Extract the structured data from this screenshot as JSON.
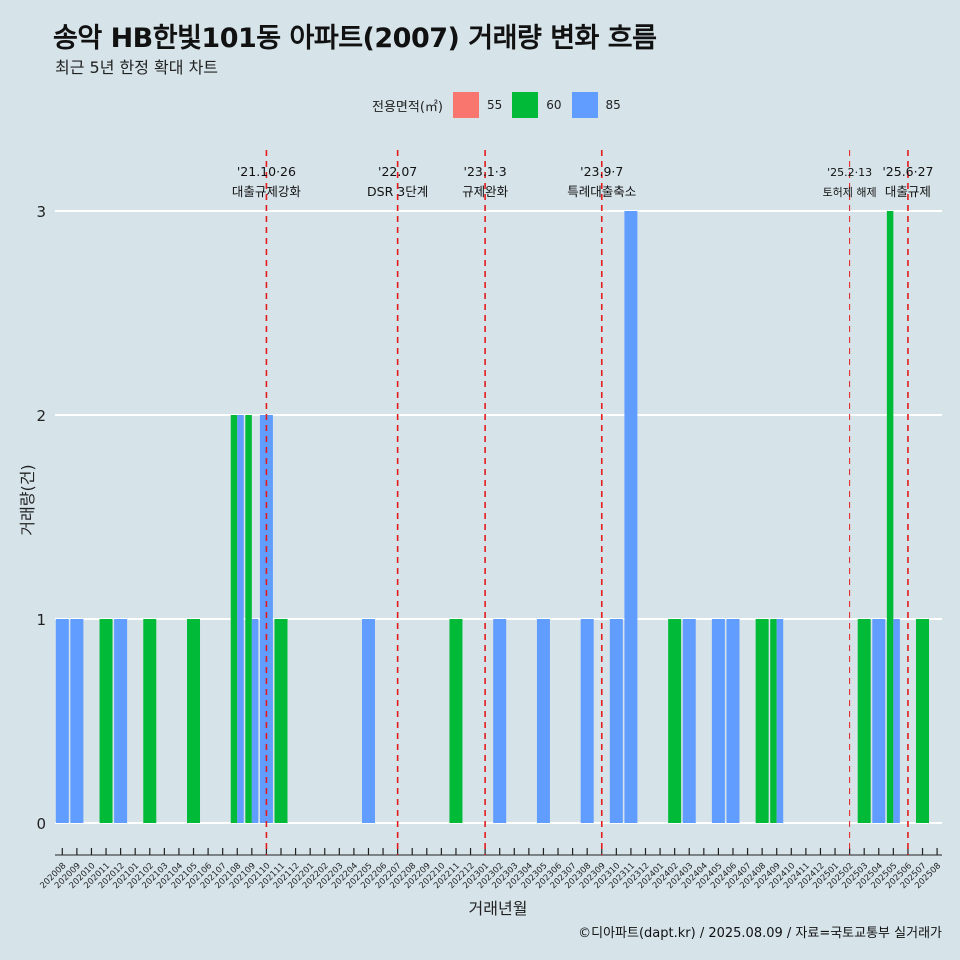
{
  "title": "송악 HB한빛101동 아파트(2007) 거래량 변화 흐름",
  "subtitle": "최근 5년 한정 확대 차트",
  "caption": "©디아파트(dapt.kr) / 2025.08.09 / 자료=국토교통부 실거래가",
  "legend": {
    "title": "전용면적(㎡)",
    "items": [
      {
        "label": "55",
        "color": "#f8766d"
      },
      {
        "label": "60",
        "color": "#00ba38"
      },
      {
        "label": "85",
        "color": "#619cff"
      }
    ]
  },
  "chart_data": {
    "type": "bar",
    "stacking": "dodge",
    "xlabel": "거래년월",
    "ylabel": "거래량(건)",
    "ylim": [
      0,
      3
    ],
    "yticks": [
      0,
      1,
      2,
      3
    ],
    "categories": [
      "202008",
      "202009",
      "202010",
      "202011",
      "202012",
      "202101",
      "202102",
      "202103",
      "202104",
      "202105",
      "202106",
      "202107",
      "202108",
      "202109",
      "202110",
      "202111",
      "202112",
      "202201",
      "202202",
      "202203",
      "202204",
      "202205",
      "202206",
      "202207",
      "202208",
      "202209",
      "202210",
      "202211",
      "202212",
      "202301",
      "202302",
      "202303",
      "202304",
      "202305",
      "202306",
      "202307",
      "202308",
      "202309",
      "202310",
      "202311",
      "202312",
      "202401",
      "202402",
      "202403",
      "202404",
      "202405",
      "202406",
      "202407",
      "202408",
      "202409",
      "202410",
      "202411",
      "202412",
      "202501",
      "202502",
      "202503",
      "202504",
      "202505",
      "202506",
      "202507",
      "202508"
    ],
    "bars": [
      {
        "month": "202008",
        "area": "85",
        "value": 1
      },
      {
        "month": "202009",
        "area": "85",
        "value": 1
      },
      {
        "month": "202011",
        "area": "60",
        "value": 1
      },
      {
        "month": "202012",
        "area": "85",
        "value": 1
      },
      {
        "month": "202102",
        "area": "60",
        "value": 1
      },
      {
        "month": "202105",
        "area": "60",
        "value": 1
      },
      {
        "month": "202108",
        "area": "60",
        "value": 2
      },
      {
        "month": "202108",
        "area": "85",
        "value": 2
      },
      {
        "month": "202109",
        "area": "60",
        "value": 2
      },
      {
        "month": "202109",
        "area": "85",
        "value": 1
      },
      {
        "month": "202110",
        "area": "85",
        "value": 2
      },
      {
        "month": "202111",
        "area": "60",
        "value": 1
      },
      {
        "month": "202205",
        "area": "85",
        "value": 1
      },
      {
        "month": "202211",
        "area": "60",
        "value": 1
      },
      {
        "month": "202302",
        "area": "85",
        "value": 1
      },
      {
        "month": "202305",
        "area": "85",
        "value": 1
      },
      {
        "month": "202308",
        "area": "85",
        "value": 1
      },
      {
        "month": "202310",
        "area": "85",
        "value": 1
      },
      {
        "month": "202311",
        "area": "85",
        "value": 3
      },
      {
        "month": "202402",
        "area": "60",
        "value": 1
      },
      {
        "month": "202403",
        "area": "85",
        "value": 1
      },
      {
        "month": "202405",
        "area": "85",
        "value": 1
      },
      {
        "month": "202406",
        "area": "85",
        "value": 1
      },
      {
        "month": "202408",
        "area": "60",
        "value": 1
      },
      {
        "month": "202409",
        "area": "60",
        "value": 1
      },
      {
        "month": "202409",
        "area": "85",
        "value": 1
      },
      {
        "month": "202503",
        "area": "60",
        "value": 1
      },
      {
        "month": "202504",
        "area": "85",
        "value": 1
      },
      {
        "month": "202505",
        "area": "60",
        "value": 3
      },
      {
        "month": "202505",
        "area": "85",
        "value": 1
      },
      {
        "month": "202507",
        "area": "60",
        "value": 1
      }
    ],
    "events": [
      {
        "month": "202110",
        "date": "'21.10·26",
        "label": "대출규제강화",
        "small": false
      },
      {
        "month": "202207",
        "date": "'22.07",
        "label": "DSR 3단계",
        "small": false
      },
      {
        "month": "202301",
        "date": "'23.1·3",
        "label": "규제완화",
        "small": false
      },
      {
        "month": "202309",
        "date": "'23.9·7",
        "label": "특례대출축소",
        "small": false
      },
      {
        "month": "202502",
        "date": "'25.2·13",
        "label": "토허제 해제",
        "small": true
      },
      {
        "month": "202506",
        "date": "'25.6·27",
        "label": "대출규제",
        "small": false
      }
    ]
  }
}
